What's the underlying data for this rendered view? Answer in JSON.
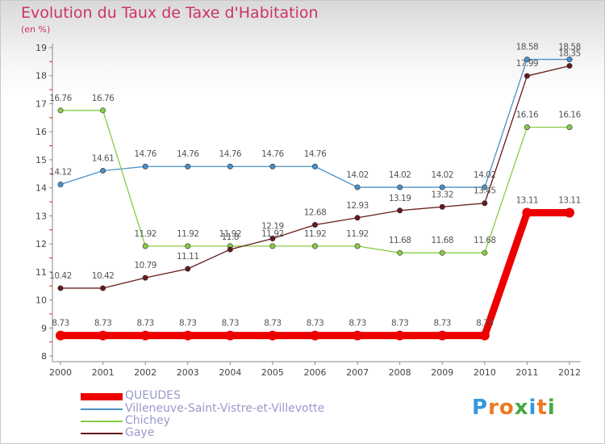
{
  "chart_data": {
    "type": "line",
    "title": "Evolution du Taux de Taxe d'Habitation",
    "unit_label": "(en %)",
    "x": [
      "2000",
      "2001",
      "2002",
      "2003",
      "2004",
      "2005",
      "2006",
      "2007",
      "2008",
      "2009",
      "2010",
      "2011",
      "2012"
    ],
    "yticks": [
      "8",
      "9",
      "10",
      "11",
      "12",
      "13",
      "14",
      "15",
      "16",
      "17",
      "18",
      "19"
    ],
    "ylim": [
      8,
      19
    ],
    "grid": false,
    "legend_position": "bottom-left",
    "series": [
      {
        "name": "Villeneuve-Saint-Vistre-et-Villevotte",
        "color": "#4a90c8",
        "values": [
          14.12,
          14.61,
          14.76,
          14.76,
          14.76,
          14.76,
          14.76,
          14.02,
          14.02,
          14.02,
          14.02,
          18.58,
          18.58
        ],
        "labels": [
          "14.12",
          "14.61",
          "14.76",
          "14.76",
          "14.76",
          "14.76",
          "14.76",
          "14.02",
          "14.02",
          "14.02",
          "14.02",
          "18.58",
          "18.58"
        ]
      },
      {
        "name": "Chichey",
        "color": "#88cc44",
        "values": [
          16.76,
          16.76,
          11.92,
          11.92,
          11.92,
          11.92,
          11.92,
          11.92,
          11.68,
          11.68,
          11.68,
          16.16,
          16.16
        ],
        "labels": [
          "16.76",
          "16.76",
          "11.92",
          "11.92",
          "11.92",
          "11.92",
          "11.92",
          "11.92",
          "11.68",
          "11.68",
          "11.68",
          "16.16",
          "16.16"
        ]
      },
      {
        "name": "Gaye",
        "color": "#661a1a",
        "values": [
          10.42,
          10.42,
          10.79,
          11.11,
          11.8,
          12.19,
          12.68,
          12.93,
          13.19,
          13.32,
          13.45,
          17.99,
          18.35
        ],
        "labels": [
          "10.42",
          "10.42",
          "10.79",
          "11.11",
          "11.8",
          "12.19",
          "12.68",
          "12.93",
          "13.19",
          "13.32",
          "13.45",
          "17.99",
          "18.35"
        ]
      },
      {
        "name": "QUEUDES",
        "color": "#ee0000",
        "values": [
          8.73,
          8.73,
          8.73,
          8.73,
          8.73,
          8.73,
          8.73,
          8.73,
          8.73,
          8.73,
          8.73,
          13.11,
          13.11
        ],
        "labels": [
          "8.73",
          "8.73",
          "8.73",
          "8.73",
          "8.73",
          "8.73",
          "8.73",
          "8.73",
          "8.73",
          "8.73",
          "8.73",
          "13.11",
          "13.11"
        ]
      }
    ]
  },
  "legend": [
    {
      "name": "QUEUDES",
      "color": "#ee0000"
    },
    {
      "name": "Villeneuve-Saint-Vistre-et-Villevotte",
      "color": "#4a90c8"
    },
    {
      "name": "Chichey",
      "color": "#88cc44"
    },
    {
      "name": "Gaye",
      "color": "#661a1a"
    }
  ],
  "logo": {
    "text": "Proxiti",
    "letter_colors": [
      "#3399dd",
      "#ee7722",
      "#ee7722",
      "#44aa44",
      "#3399dd",
      "#ee7722",
      "#44aa44"
    ]
  }
}
